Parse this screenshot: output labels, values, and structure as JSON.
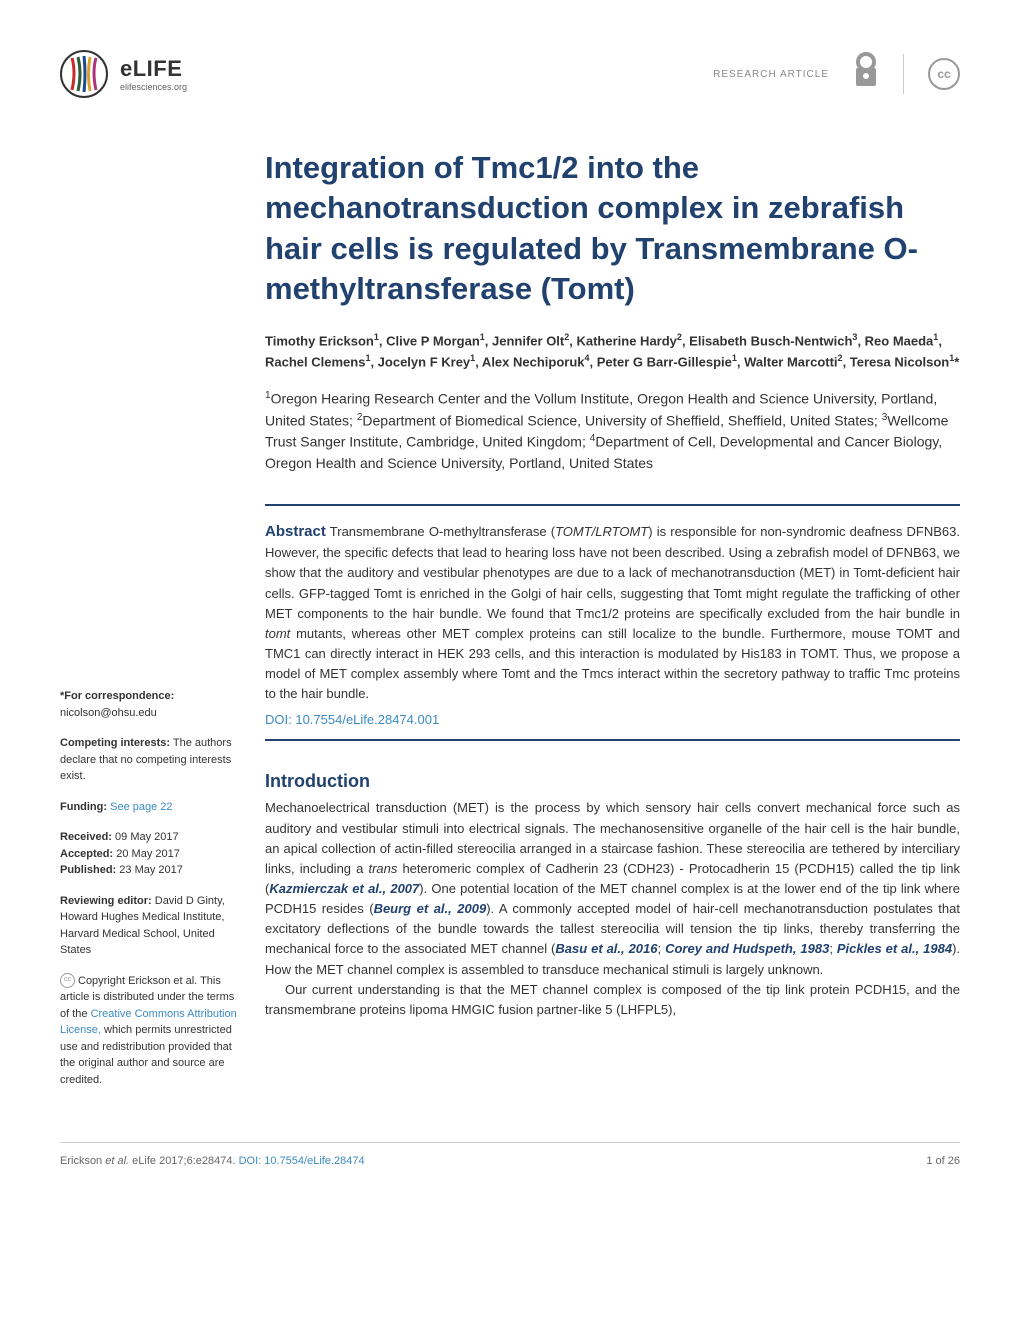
{
  "header": {
    "logo_name": "eLIFE",
    "logo_url": "elifesciences.org",
    "article_type": "RESEARCH ARTICLE",
    "cc_text": "cc"
  },
  "title": "Integration of Tmc1/2 into the mechanotransduction complex in zebrafish hair cells is regulated by Transmembrane O-methyltransferase (Tomt)",
  "authors_html": "Timothy Erickson<sup>1</sup>, Clive P Morgan<sup>1</sup>, Jennifer Olt<sup>2</sup>, Katherine Hardy<sup>2</sup>, Elisabeth Busch-Nentwich<sup>3</sup>, Reo Maeda<sup>1</sup>, Rachel Clemens<sup>1</sup>, Jocelyn F Krey<sup>1</sup>, Alex Nechiporuk<sup>4</sup>, Peter G Barr-Gillespie<sup>1</sup>, Walter Marcotti<sup>2</sup>, Teresa Nicolson<sup>1</sup>*",
  "affiliations_html": "<sup>1</sup>Oregon Hearing Research Center and the Vollum Institute, Oregon Health and Science University, Portland, United States; <sup>2</sup>Department of Biomedical Science, University of Sheffield, Sheffield, United States; <sup>3</sup>Wellcome Trust Sanger Institute, Cambridge, United Kingdom; <sup>4</sup>Department of Cell, Developmental and Cancer Biology, Oregon Health and Science University, Portland, United States",
  "abstract_label": "Abstract",
  "abstract_text": "Transmembrane O-methyltransferase (TOMT/LRTOMT) is responsible for non-syndromic deafness DFNB63. However, the specific defects that lead to hearing loss have not been described. Using a zebrafish model of DFNB63, we show that the auditory and vestibular phenotypes are due to a lack of mechanotransduction (MET) in Tomt-deficient hair cells. GFP-tagged Tomt is enriched in the Golgi of hair cells, suggesting that Tomt might regulate the trafficking of other MET components to the hair bundle. We found that Tmc1/2 proteins are specifically excluded from the hair bundle in tomt mutants, whereas other MET complex proteins can still localize to the bundle. Furthermore, mouse TOMT and TMC1 can directly interact in HEK 293 cells, and this interaction is modulated by His183 in TOMT. Thus, we propose a model of MET complex assembly where Tomt and the Tmcs interact within the secretory pathway to traffic Tmc proteins to the hair bundle.",
  "doi_link": "DOI: 10.7554/eLife.28474.001",
  "sidebar": {
    "correspondence_label": "*For correspondence:",
    "correspondence_value": "nicolson@ohsu.edu",
    "competing_label": "Competing interests:",
    "competing_value": "The authors declare that no competing interests exist.",
    "funding_label": "Funding:",
    "funding_value": "See page 22",
    "received_label": "Received:",
    "received_value": "09 May 2017",
    "accepted_label": "Accepted:",
    "accepted_value": "20 May 2017",
    "published_label": "Published:",
    "published_value": "23 May 2017",
    "editor_label": "Reviewing editor: ",
    "editor_value": "David D Ginty, Howard Hughes Medical Institute, Harvard Medical School, United States",
    "copyright_text": "Copyright Erickson et al. This article is distributed under the terms of the ",
    "license_link": "Creative Commons Attribution License,",
    "copyright_tail": " which permits unrestricted use and redistribution provided that the original author and source are credited."
  },
  "intro": {
    "heading": "Introduction",
    "p1_a": "Mechanoelectrical transduction (MET) is the process by which sensory hair cells convert mechanical force such as auditory and vestibular stimuli into electrical signals. The mechanosensitive organelle of the hair cell is the hair bundle, an apical collection of actin-filled stereocilia arranged in a staircase fashion. These stereocilia are tethered by interciliary links, including a trans heteromeric complex of Cadherin 23 (CDH23) - Protocadherin 15 (PCDH15) called the tip link (",
    "ref1": "Kazmierczak et al., 2007",
    "p1_b": "). One potential location of the MET channel complex is at the lower end of the tip link where PCDH15 resides (",
    "ref2": "Beurg et al., 2009",
    "p1_c": "). A commonly accepted model of hair-cell mechanotransduction postulates that excitatory deflections of the bundle towards the tallest stereocilia will tension the tip links, thereby transferring the mechanical force to the associated MET channel (",
    "ref3": "Basu et al., 2016",
    "p1_d": "; ",
    "ref4": "Corey and Hudspeth, 1983",
    "p1_e": "; ",
    "ref5": "Pickles et al., 1984",
    "p1_f": "). How the MET channel complex is assembled to transduce mechanical stimuli is largely unknown.",
    "p2": "Our current understanding is that the MET channel complex is composed of the tip link protein PCDH15, and the transmembrane proteins lipoma HMGIC fusion partner-like 5 (LHFPL5),"
  },
  "footer": {
    "citation_a": "Erickson et al. eLife 2017;6:e28474. ",
    "citation_doi": "DOI: 10.7554/eLife.28474",
    "page_num": "1 of 26"
  }
}
